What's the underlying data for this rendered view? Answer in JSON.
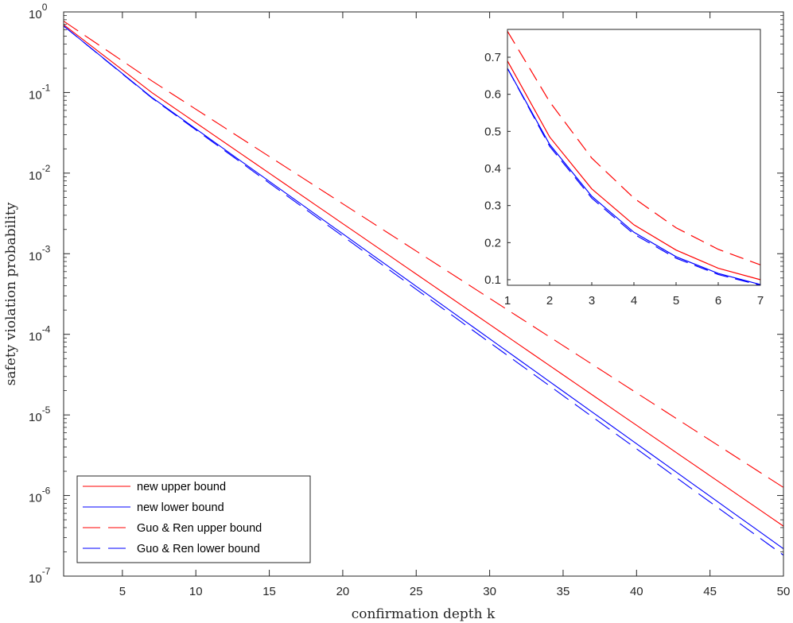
{
  "chart_data": [
    {
      "type": "line",
      "panel": "main",
      "xlabel": "confirmation depth k",
      "ylabel": "safety violation probability",
      "yscale": "log",
      "xlim": [
        1,
        50
      ],
      "ylim_exp": [
        -7,
        0
      ],
      "xticks": [
        5,
        10,
        15,
        20,
        25,
        30,
        35,
        40,
        45,
        50
      ],
      "xtick_labels": [
        "5",
        "10",
        "15",
        "20",
        "25",
        "30",
        "35",
        "40",
        "45",
        "50"
      ],
      "ytick_exp": [
        0,
        -1,
        -2,
        -3,
        -4,
        -5,
        -6,
        -7
      ],
      "ytick_labels": [
        {
          "base": "10",
          "exp": "0"
        },
        {
          "base": "10",
          "exp": "-1"
        },
        {
          "base": "10",
          "exp": "-2"
        },
        {
          "base": "10",
          "exp": "-3"
        },
        {
          "base": "10",
          "exp": "-4"
        },
        {
          "base": "10",
          "exp": "-5"
        },
        {
          "base": "10",
          "exp": "-6"
        },
        {
          "base": "10",
          "exp": "-7"
        }
      ],
      "legend_position": "bottom-left",
      "series": [
        {
          "name": "new upper bound",
          "color": "#ff0000",
          "dash": "solid",
          "x": [
            1,
            7,
            50
          ],
          "log10_y": [
            -0.158,
            -1.0,
            -6.38
          ]
        },
        {
          "name": "new lower bound",
          "color": "#0000ff",
          "dash": "solid",
          "x": [
            1,
            7,
            50
          ],
          "log10_y": [
            -0.174,
            -1.06,
            -6.66
          ]
        },
        {
          "name": "Guo & Ren upper bound",
          "color": "#ff0000",
          "dash": "dashed",
          "x": [
            1,
            7,
            50
          ],
          "log10_y": [
            -0.114,
            -0.855,
            -5.9
          ]
        },
        {
          "name": "Guo & Ren lower bound",
          "color": "#0000ff",
          "dash": "dashed",
          "x": [
            1,
            7,
            50
          ],
          "log10_y": [
            -0.174,
            -1.067,
            -6.74
          ]
        }
      ]
    },
    {
      "type": "line",
      "panel": "inset",
      "xlim": [
        1,
        7
      ],
      "ylim": [
        0.085,
        0.775
      ],
      "xticks": [
        1,
        2,
        3,
        4,
        5,
        6,
        7
      ],
      "xtick_labels": [
        "1",
        "2",
        "3",
        "4",
        "5",
        "6",
        "7"
      ],
      "yticks": [
        0.1,
        0.2,
        0.3,
        0.4,
        0.5,
        0.6,
        0.7
      ],
      "ytick_labels": [
        "0.1",
        "0.2",
        "0.3",
        "0.4",
        "0.5",
        "0.6",
        "0.7"
      ],
      "series": [
        {
          "name": "new upper bound",
          "color": "#ff0000",
          "dash": "solid",
          "x": [
            1,
            2,
            3,
            4,
            5,
            6,
            7
          ],
          "y": [
            0.69,
            0.485,
            0.345,
            0.248,
            0.18,
            0.131,
            0.1
          ]
        },
        {
          "name": "new lower bound",
          "color": "#0000ff",
          "dash": "solid",
          "x": [
            1,
            2,
            3,
            4,
            5,
            6,
            7
          ],
          "y": [
            0.67,
            0.465,
            0.325,
            0.228,
            0.162,
            0.117,
            0.087
          ]
        },
        {
          "name": "Guo & Ren upper bound",
          "color": "#ff0000",
          "dash": "dashed",
          "x": [
            1,
            2,
            3,
            4,
            5,
            6,
            7
          ],
          "y": [
            0.77,
            0.58,
            0.428,
            0.32,
            0.24,
            0.182,
            0.14
          ]
        },
        {
          "name": "Guo & Ren lower bound",
          "color": "#0000ff",
          "dash": "dashed",
          "x": [
            1,
            2,
            3,
            4,
            5,
            6,
            7
          ],
          "y": [
            0.67,
            0.46,
            0.32,
            0.223,
            0.158,
            0.114,
            0.085
          ]
        }
      ]
    }
  ]
}
